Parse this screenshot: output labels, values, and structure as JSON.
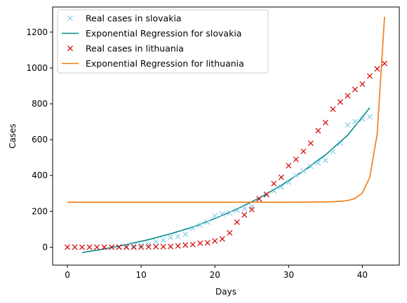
{
  "chart_data": {
    "type": "line",
    "xlabel": "Days",
    "ylabel": "Cases",
    "xlim": [
      -2,
      45
    ],
    "ylim": [
      -100,
      1340
    ],
    "xticks": [
      0,
      10,
      20,
      30,
      40
    ],
    "yticks": [
      0,
      200,
      400,
      600,
      800,
      1000,
      1200
    ],
    "grid": false,
    "legend_position": "top-left",
    "series": [
      {
        "name": "Real cases in slovakia",
        "kind": "scatter",
        "marker": "x",
        "color": "#87ceeb",
        "x": [
          7,
          8,
          9,
          10,
          11,
          12,
          13,
          14,
          15,
          16,
          17,
          18,
          19,
          20,
          21,
          22,
          23,
          24,
          25,
          26,
          27,
          28,
          29,
          30,
          31,
          32,
          33,
          34,
          35,
          36,
          37,
          38,
          39,
          40,
          41
        ],
        "y": [
          3,
          5,
          7,
          10,
          16,
          30,
          40,
          55,
          60,
          72,
          105,
          123,
          140,
          175,
          185,
          190,
          205,
          216,
          226,
          269,
          292,
          314,
          336,
          363,
          400,
          426,
          450,
          471,
          485,
          534,
          581,
          682,
          701,
          715,
          728
        ]
      },
      {
        "name": "Exponential Regression for slovakia",
        "kind": "line",
        "color": "#008b8b",
        "x": [
          2,
          5,
          8,
          11,
          14,
          17,
          20,
          23,
          26,
          29,
          32,
          35,
          38,
          41
        ],
        "y": [
          -30,
          -10,
          15,
          42,
          75,
          112,
          160,
          213,
          274,
          345,
          425,
          515,
          625,
          778
        ]
      },
      {
        "name": "Real cases in lithuania",
        "kind": "scatter",
        "marker": "x",
        "color": "#d40000",
        "x": [
          0,
          1,
          2,
          3,
          4,
          5,
          6,
          7,
          8,
          9,
          10,
          11,
          12,
          13,
          14,
          15,
          16,
          17,
          18,
          19,
          20,
          21,
          22,
          23,
          24,
          25,
          26,
          27,
          28,
          29,
          30,
          31,
          32,
          33,
          34,
          35,
          36,
          37,
          38,
          39,
          40,
          41,
          42,
          43
        ],
        "y": [
          0,
          0,
          0,
          0,
          0,
          0,
          0,
          0,
          0,
          0,
          1,
          2,
          3,
          3,
          4,
          7,
          12,
          15,
          22,
          25,
          35,
          46,
          80,
          140,
          180,
          210,
          270,
          295,
          355,
          390,
          455,
          490,
          535,
          580,
          650,
          695,
          770,
          810,
          845,
          880,
          910,
          955,
          995,
          1025
        ]
      },
      {
        "name": "Exponential Regression for lithuania",
        "kind": "line",
        "color": "#f07a10",
        "x": [
          0,
          5,
          10,
          15,
          20,
          25,
          30,
          34,
          35,
          36,
          37,
          38,
          39,
          40,
          41,
          42,
          43
        ],
        "y": [
          251,
          251,
          251,
          251,
          251,
          251,
          251,
          252,
          253,
          254,
          256,
          260,
          272,
          303,
          390,
          630,
          1285
        ]
      }
    ]
  }
}
